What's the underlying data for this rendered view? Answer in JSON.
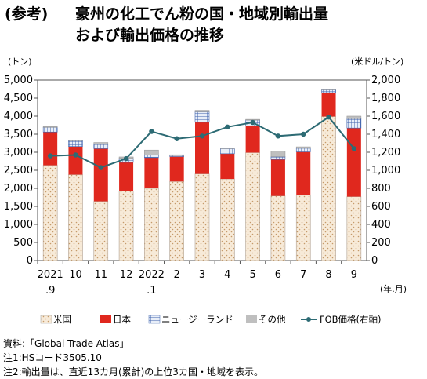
{
  "title_label": "(参考)",
  "title_line1": "豪州の化工でん粉の国・地域別輸出量",
  "title_line2": "および輸出価格の推移",
  "chart_data": {
    "type": "bar",
    "stacked": true,
    "left_unit": "(トン)",
    "right_unit": "(米ドル/トン)",
    "x_unit": "(年.月)",
    "categories": [
      "2021\n.9",
      "10",
      "11",
      "12",
      "2022\n.1",
      "2",
      "3",
      "4",
      "5",
      "6",
      "7",
      "8",
      "9"
    ],
    "ylim": [
      0,
      5000
    ],
    "y_ticks": [
      "0",
      "500",
      "1,000",
      "1,500",
      "2,000",
      "2,500",
      "3,000",
      "3,500",
      "4,000",
      "4,500",
      "5,000"
    ],
    "y2lim": [
      0,
      2000
    ],
    "y2_ticks": [
      "0",
      "200",
      "400",
      "600",
      "800",
      "1,000",
      "1,200",
      "1,400",
      "1,600",
      "1,800",
      "2,000"
    ],
    "series": [
      {
        "name": "米国",
        "color": "#f5e6d0",
        "pattern": "dots",
        "values": [
          2640,
          2380,
          1640,
          1920,
          2000,
          2190,
          2400,
          2260,
          2990,
          1790,
          1810,
          3990,
          1770
        ]
      },
      {
        "name": "日本",
        "color": "#e0281e",
        "values": [
          920,
          780,
          1460,
          800,
          850,
          690,
          1430,
          700,
          740,
          1010,
          1200,
          660,
          1900
        ]
      },
      {
        "name": "ニュージーランド",
        "color": "#5e82c2",
        "pattern": "grid",
        "values": [
          130,
          160,
          120,
          110,
          70,
          30,
          290,
          140,
          160,
          80,
          100,
          80,
          260
        ]
      },
      {
        "name": "その他",
        "color": "#bfbfbf",
        "values": [
          20,
          20,
          50,
          40,
          140,
          20,
          40,
          20,
          20,
          150,
          40,
          20,
          70
        ]
      }
    ],
    "line": {
      "name": "FOB価格(右軸)",
      "color": "#2d6b74",
      "values": [
        1160,
        1170,
        1030,
        1130,
        1430,
        1350,
        1380,
        1480,
        1530,
        1380,
        1400,
        1590,
        1240
      ]
    },
    "legend": [
      "米国",
      "日本",
      "ニュージーランド",
      "その他",
      "FOB価格(右軸)"
    ],
    "grid": false,
    "legend_position": "bottom"
  },
  "notes": [
    "資料:「Global Trade Atlas」",
    "注1:HSコード3505.10",
    "注2:輸出量は、直近13カ月(累計)の上位3カ国・地域を表示。"
  ]
}
